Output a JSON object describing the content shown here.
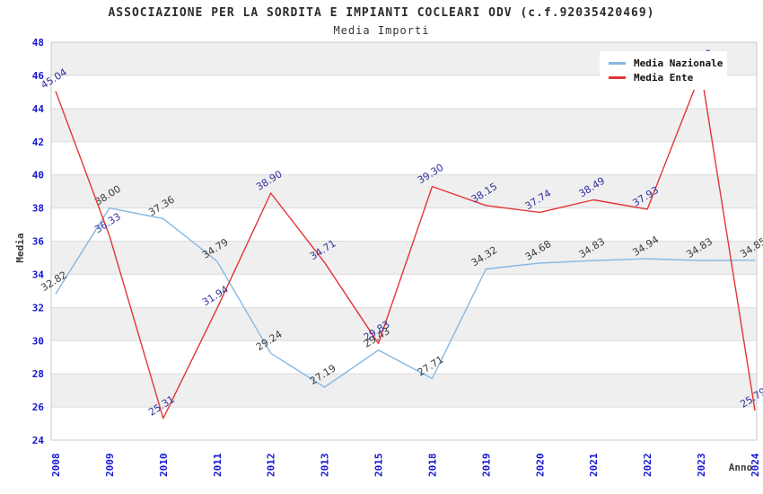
{
  "chart": {
    "title": "ASSOCIAZIONE PER LA SORDITA E IMPIANTI COCLEARI ODV (c.f.92035420469)",
    "subtitle": "Media Importi"
  },
  "chart_data": {
    "type": "line",
    "x": [
      "2008",
      "2009",
      "2010",
      "2011",
      "2012",
      "2013",
      "2015",
      "2018",
      "2019",
      "2020",
      "2021",
      "2022",
      "2023",
      "2024"
    ],
    "xlabel": "Anno",
    "ylabel": "Media",
    "ylim": [
      24,
      48
    ],
    "ytick_step": 2,
    "grid": true,
    "bands": true,
    "legend_position": "top-right",
    "series": [
      {
        "name": "Media Nazionale",
        "color": "#85b7e4",
        "label_color": "#3a3a3a",
        "values": [
          32.82,
          38.0,
          37.36,
          34.79,
          29.24,
          27.19,
          29.43,
          27.71,
          34.32,
          34.68,
          34.83,
          34.94,
          34.83,
          34.85
        ]
      },
      {
        "name": "Media Ente",
        "color": "#e43535",
        "label_color": "#30309e",
        "values": [
          45.04,
          36.33,
          25.31,
          31.94,
          38.9,
          34.71,
          29.83,
          39.3,
          38.15,
          37.74,
          38.49,
          37.93,
          46.2,
          25.79
        ]
      }
    ],
    "colors": {
      "band_fill": "#efefef",
      "grid_line": "#dcdcdc",
      "plot_border": "#c9c9c9",
      "tick_label": "#1515d0"
    }
  }
}
